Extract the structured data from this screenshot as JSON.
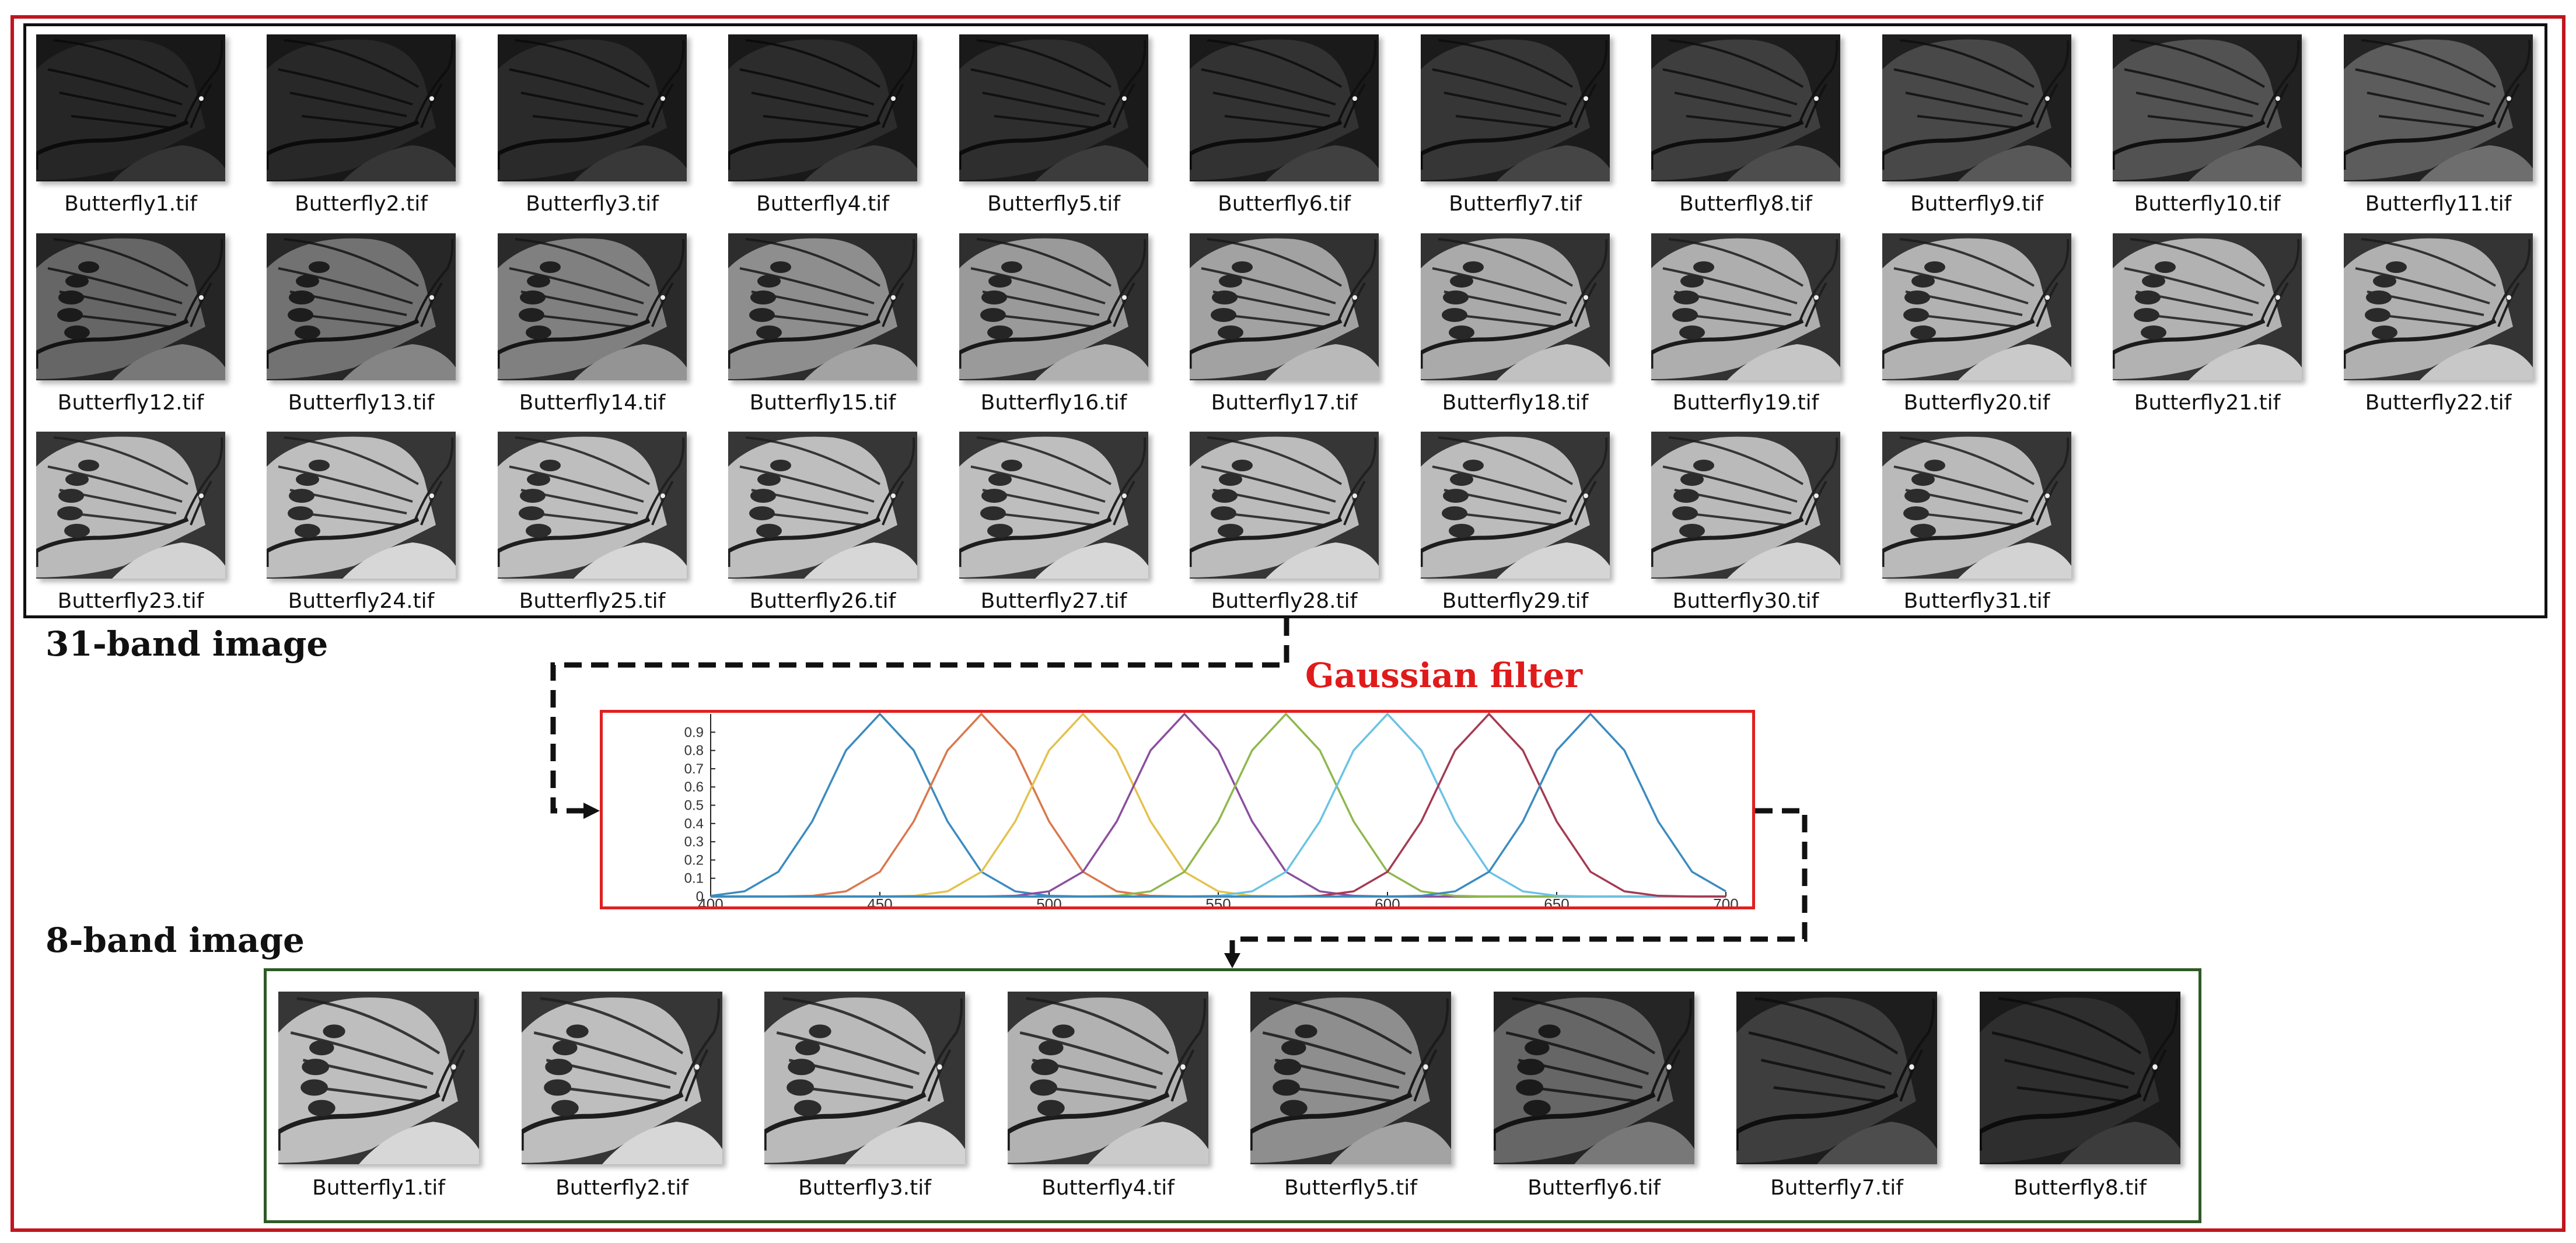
{
  "labels": {
    "band31_title": "31-band image",
    "filter_title": "Gaussian filter",
    "band8_title": "8-band image"
  },
  "colors": {
    "outer_frame": "#c0161e",
    "grid31_border": "#111111",
    "grid8_border": "#2e5a26",
    "filter_title": "#e01b1b",
    "plot_border": "#e02020"
  },
  "band31_files": [
    "Butterfly1.tif",
    "Butterfly2.tif",
    "Butterfly3.tif",
    "Butterfly4.tif",
    "Butterfly5.tif",
    "Butterfly6.tif",
    "Butterfly7.tif",
    "Butterfly8.tif",
    "Butterfly9.tif",
    "Butterfly10.tif",
    "Butterfly11.tif",
    "Butterfly12.tif",
    "Butterfly13.tif",
    "Butterfly14.tif",
    "Butterfly15.tif",
    "Butterfly16.tif",
    "Butterfly17.tif",
    "Butterfly18.tif",
    "Butterfly19.tif",
    "Butterfly20.tif",
    "Butterfly21.tif",
    "Butterfly22.tif",
    "Butterfly23.tif",
    "Butterfly24.tif",
    "Butterfly25.tif",
    "Butterfly26.tif",
    "Butterfly27.tif",
    "Butterfly28.tif",
    "Butterfly29.tif",
    "Butterfly30.tif",
    "Butterfly31.tif"
  ],
  "band8_files": [
    "Butterfly1.tif",
    "Butterfly2.tif",
    "Butterfly3.tif",
    "Butterfly4.tif",
    "Butterfly5.tif",
    "Butterfly6.tif",
    "Butterfly7.tif",
    "Butterfly8.tif"
  ],
  "band31_brightness": [
    0.1,
    0.11,
    0.12,
    0.13,
    0.14,
    0.16,
    0.18,
    0.22,
    0.27,
    0.32,
    0.37,
    0.42,
    0.48,
    0.55,
    0.62,
    0.68,
    0.72,
    0.76,
    0.78,
    0.8,
    0.8,
    0.79,
    0.84,
    0.86,
    0.86,
    0.86,
    0.86,
    0.85,
    0.85,
    0.84,
    0.84
  ],
  "band8_brightness": [
    0.86,
    0.86,
    0.84,
    0.8,
    0.62,
    0.42,
    0.22,
    0.14
  ],
  "chart_data": {
    "type": "line",
    "x_ticks": [
      "400",
      "450",
      "500",
      "550",
      "600",
      "650",
      "700"
    ],
    "y_ticks": [
      "0",
      "0.1",
      "0.2",
      "0.3",
      "0.4",
      "0.5",
      "0.6",
      "0.7",
      "0.8",
      "0.9"
    ],
    "xlim": [
      400,
      700
    ],
    "ylim": [
      0,
      1
    ],
    "x": [
      400,
      410,
      420,
      430,
      440,
      450,
      460,
      470,
      480,
      490,
      500,
      510,
      520,
      530,
      540,
      550,
      560,
      570,
      580,
      590,
      600,
      610,
      620,
      630,
      640,
      650,
      660,
      670,
      680,
      690,
      700
    ],
    "series": [
      {
        "color": "#3b8bbf",
        "center": 450
      },
      {
        "color": "#d9784c",
        "center": 480
      },
      {
        "color": "#e3c24e",
        "center": 510
      },
      {
        "color": "#8b4f9e",
        "center": 540
      },
      {
        "color": "#8fb84e",
        "center": 570
      },
      {
        "color": "#6cc3e3",
        "center": 600
      },
      {
        "color": "#a43a52",
        "center": 630
      },
      {
        "color": "#3b8bbf",
        "center": 660
      }
    ],
    "sigma": 15
  }
}
